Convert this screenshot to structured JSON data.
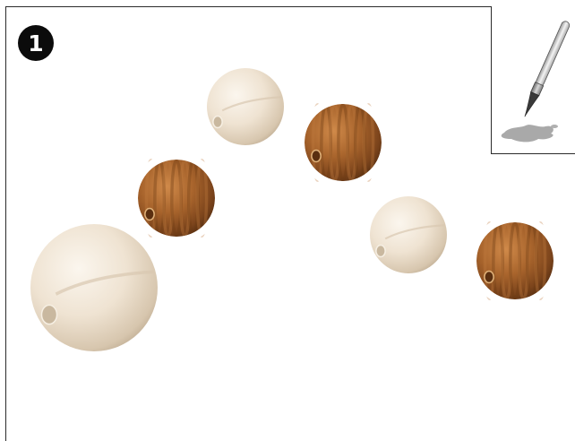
{
  "step": {
    "number": "1"
  },
  "tool": {
    "icon": "paintbrush-icon"
  },
  "colors": {
    "unpainted": "#eee2cf",
    "stained": "#9a5a26",
    "badge": "#0b0b0b"
  },
  "beads": [
    {
      "finish": "unpainted"
    },
    {
      "finish": "stained"
    },
    {
      "finish": "unpainted"
    },
    {
      "finish": "stained"
    },
    {
      "finish": "unpainted"
    },
    {
      "finish": "stained"
    }
  ]
}
